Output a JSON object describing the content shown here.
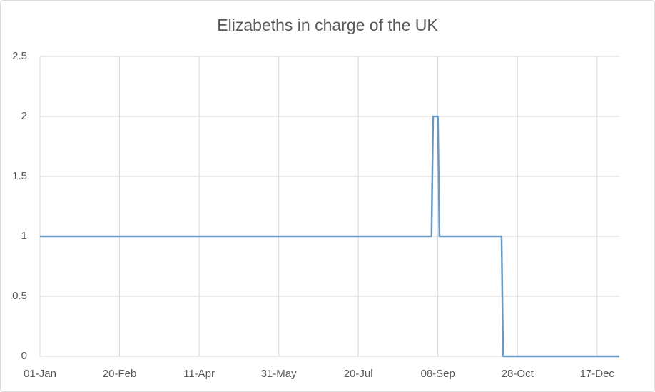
{
  "chart_data": {
    "type": "line",
    "title": "Elizabeths in charge of the UK",
    "x": [
      "01-Jan",
      "04-Sep",
      "05-Sep",
      "08-Sep",
      "09-Sep",
      "18-Oct",
      "19-Oct",
      "31-Dec"
    ],
    "series": [
      {
        "color": "#6a9ac4",
        "values": [
          1,
          1,
          2,
          2,
          1,
          1,
          0,
          0
        ]
      }
    ],
    "xlim": [
      "01-Jan",
      "31-Dec"
    ],
    "xticks": [
      "01-Jan",
      "20-Feb",
      "11-Apr",
      "31-May",
      "20-Jul",
      "08-Sep",
      "28-Oct",
      "17-Dec"
    ],
    "ylim": [
      0,
      2.5
    ],
    "yticks": [
      0,
      0.5,
      1,
      1.5,
      2,
      2.5
    ],
    "grid": true
  }
}
